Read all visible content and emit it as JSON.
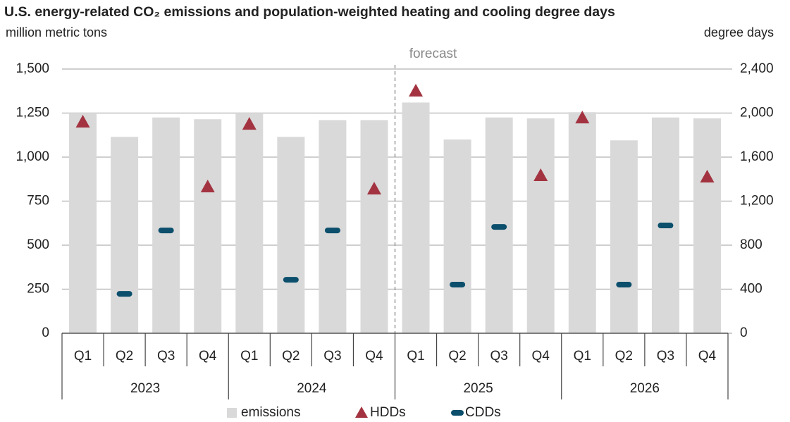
{
  "chart_data": {
    "type": "bar",
    "title": "U.S. energy-related CO₂ emissions and population-weighted heating and cooling degree days",
    "y_label": "million  metric tons",
    "y2_label": "degree days",
    "categories": [
      "Q1",
      "Q2",
      "Q3",
      "Q4",
      "Q1",
      "Q2",
      "Q3",
      "Q4",
      "Q1",
      "Q2",
      "Q3",
      "Q4",
      "Q1",
      "Q2",
      "Q3",
      "Q4"
    ],
    "category_groups": [
      "2023",
      "2024",
      "2025",
      "2026"
    ],
    "annotations": [
      {
        "text": "forecast",
        "before_category": 8
      }
    ],
    "series": [
      {
        "name": "emissions",
        "type": "bar",
        "color": "#d9d9d9",
        "values": [
          1245,
          1115,
          1225,
          1215,
          1245,
          1115,
          1210,
          1210,
          1310,
          1100,
          1225,
          1220,
          1255,
          1095,
          1225,
          1220
        ]
      },
      {
        "name": "HDDs",
        "type": "marker",
        "marker": "triangle",
        "color": "#a33340",
        "axis": "y2",
        "values": [
          1920,
          null,
          null,
          1331,
          1900,
          null,
          null,
          1312,
          2202,
          null,
          null,
          1434,
          1958,
          null,
          null,
          1421
        ]
      },
      {
        "name": "CDDs",
        "type": "marker",
        "marker": "dash",
        "color": "#0b4f6c",
        "axis": "y2",
        "values": [
          null,
          358,
          934,
          null,
          null,
          486,
          934,
          null,
          null,
          442,
          966,
          null,
          null,
          442,
          979,
          null
        ]
      }
    ],
    "ylim": [
      0,
      1500
    ],
    "yticks": [
      0,
      250,
      500,
      750,
      {
        "value": 1000,
        "label": "1,000"
      },
      {
        "value": 1250,
        "label": "1,250"
      },
      {
        "value": 1500,
        "label": "1,500"
      }
    ],
    "y2lim": [
      0,
      2400
    ],
    "y2ticks": [
      0,
      400,
      800,
      {
        "value": 1200,
        "label": "1,200"
      },
      {
        "value": 1600,
        "label": "1,600"
      },
      {
        "value": 2000,
        "label": "2,000"
      },
      {
        "value": 2400,
        "label": "2,400"
      }
    ],
    "grid": true
  }
}
